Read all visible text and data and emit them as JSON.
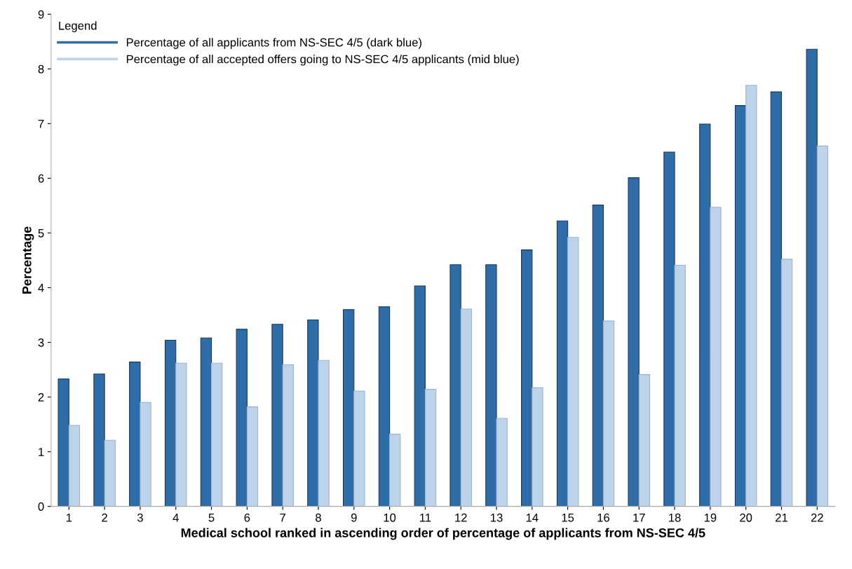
{
  "chart_data": {
    "type": "bar",
    "xlabel": "Medical school ranked in ascending order of percentage of applicants from NS-SEC 4/5",
    "ylabel": "Percentage",
    "legend_title": "Legend",
    "categories": [
      "1",
      "2",
      "3",
      "4",
      "5",
      "6",
      "7",
      "8",
      "9",
      "10",
      "11",
      "12",
      "13",
      "14",
      "15",
      "16",
      "17",
      "18",
      "19",
      "20",
      "21",
      "22"
    ],
    "series": [
      {
        "name": "Percentage of all applicants from NS-SEC 4/5 (dark blue)",
        "color": "#2e6da8",
        "values": [
          2.33,
          2.42,
          2.64,
          3.04,
          3.08,
          3.24,
          3.33,
          3.41,
          3.6,
          3.65,
          4.03,
          4.42,
          4.42,
          4.69,
          5.22,
          5.51,
          6.01,
          6.48,
          6.99,
          7.33,
          7.58,
          8.36
        ]
      },
      {
        "name": "Percentage of all accepted offers going to NS-SEC 4/5 applicants (mid blue)",
        "color": "#bdd3ea",
        "values": [
          1.48,
          1.21,
          1.9,
          2.62,
          2.62,
          1.82,
          2.59,
          2.67,
          2.11,
          1.32,
          2.14,
          3.61,
          1.61,
          2.17,
          4.92,
          3.39,
          2.41,
          4.41,
          5.47,
          7.7,
          4.52,
          6.59
        ]
      }
    ],
    "ylim": [
      0,
      9
    ],
    "yticks": [
      0,
      1,
      2,
      3,
      4,
      5,
      6,
      7,
      8,
      9
    ],
    "grid": false,
    "legend": "top left"
  }
}
